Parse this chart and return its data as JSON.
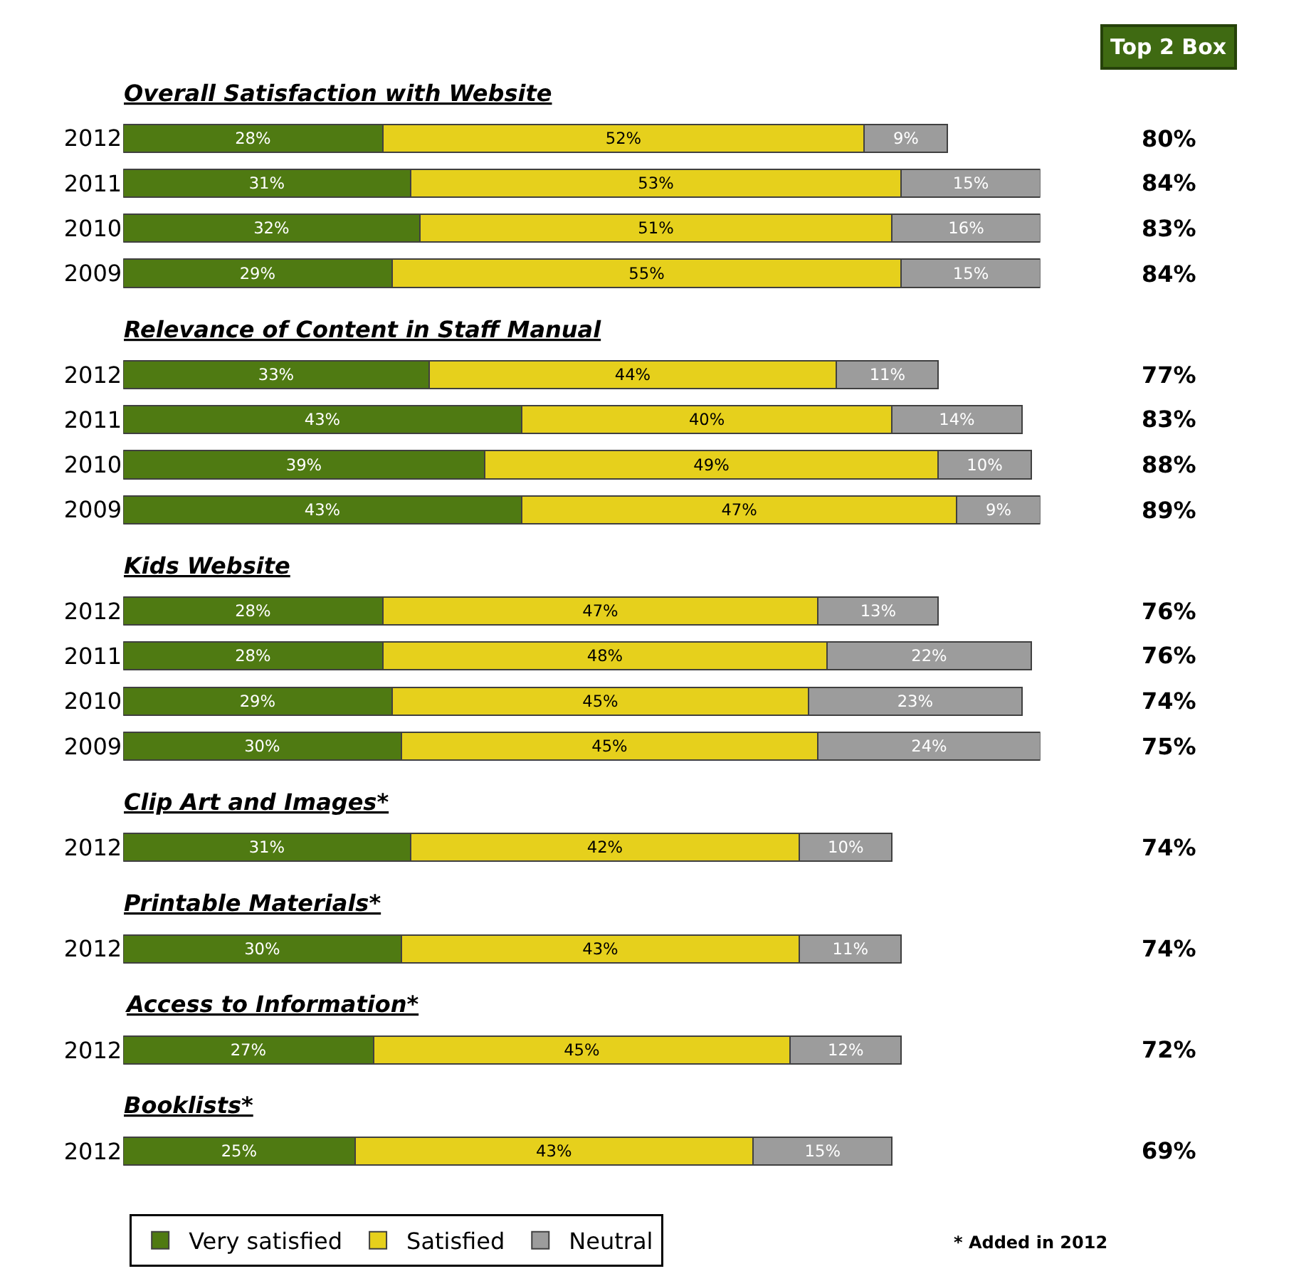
{
  "chart_data": [
    {
      "type": "bar",
      "orientation": "horizontal",
      "stacked": true,
      "tick_labels": "y",
      "title": "Overall Satisfaction with Website",
      "categories": [
        "2012",
        "2011",
        "2010",
        "2009"
      ],
      "legend": "bottom",
      "series": [
        {
          "name": "Very satisfied",
          "color": "#4f7a12",
          "values": [
            28,
            31,
            32,
            29
          ],
          "value_labels": [
            "28%",
            "31%",
            "32%",
            "29%"
          ]
        },
        {
          "name": "Satisfied",
          "color": "#e6d01c",
          "values": [
            52,
            53,
            51,
            55
          ],
          "value_labels": [
            "52%",
            "53%",
            "51%",
            "55%"
          ]
        },
        {
          "name": "Neutral",
          "color": "#9c9c9c",
          "values": [
            9,
            15,
            16,
            15
          ],
          "value_labels": [
            "9%",
            "15%",
            "16%",
            "15%"
          ]
        }
      ],
      "annotations": [
        "Top 2 Box",
        "80%",
        "84%",
        "83%",
        "84%"
      ]
    },
    {
      "type": "bar",
      "orientation": "horizontal",
      "stacked": true,
      "tick_labels": "y",
      "title": "Relevance of Content in Staff Manual",
      "categories": [
        "2012",
        "2011",
        "2010",
        "2009"
      ],
      "series": [
        {
          "color": "#4f7a12",
          "values": [
            33,
            43,
            39,
            43
          ],
          "value_labels": [
            "33%",
            "43%",
            "39%",
            "43%"
          ]
        },
        {
          "color": "#e6d01c",
          "values": [
            44,
            40,
            49,
            47
          ],
          "value_labels": [
            "44%",
            "40%",
            "49%",
            "47%"
          ]
        },
        {
          "color": "#9c9c9c",
          "values": [
            11,
            14,
            10,
            9
          ],
          "value_labels": [
            "11%",
            "14%",
            "10%",
            "9%"
          ]
        }
      ],
      "annotations": [
        "77%",
        "83%",
        "88%",
        "89%"
      ]
    },
    {
      "type": "bar",
      "orientation": "horizontal",
      "stacked": true,
      "tick_labels": "y",
      "title": "Kids Website",
      "categories": [
        "2012",
        "2011",
        "2010",
        "2009"
      ],
      "series": [
        {
          "color": "#4f7a12",
          "values": [
            28,
            28,
            29,
            30
          ],
          "value_labels": [
            "28%",
            "28%",
            "29%",
            "30%"
          ]
        },
        {
          "color": "#e6d01c",
          "values": [
            47,
            48,
            45,
            45
          ],
          "value_labels": [
            "47%",
            "48%",
            "45%",
            "45%"
          ]
        },
        {
          "color": "#9c9c9c",
          "values": [
            13,
            22,
            23,
            24
          ],
          "value_labels": [
            "13%",
            "22%",
            "23%",
            "24%"
          ]
        }
      ],
      "annotations": [
        "76%",
        "76%",
        "74%",
        "75%"
      ]
    },
    {
      "type": "bar",
      "orientation": "horizontal",
      "stacked": true,
      "tick_labels": "y",
      "title": "Clip Art and Images*",
      "categories": [
        "2012"
      ],
      "series": [
        {
          "color": "#4f7a12",
          "values": [
            31
          ],
          "value_labels": [
            "31%"
          ]
        },
        {
          "color": "#e6d01c",
          "values": [
            42
          ],
          "value_labels": [
            "42%"
          ]
        },
        {
          "color": "#9c9c9c",
          "values": [
            10
          ],
          "value_labels": [
            "10%"
          ]
        }
      ],
      "annotations": [
        "74%"
      ]
    },
    {
      "type": "bar",
      "orientation": "horizontal",
      "stacked": true,
      "tick_labels": "y",
      "title": "Printable Materials*",
      "categories": [
        "2012"
      ],
      "series": [
        {
          "color": "#4f7a12",
          "values": [
            30
          ],
          "value_labels": [
            "30%"
          ]
        },
        {
          "color": "#e6d01c",
          "values": [
            43
          ],
          "value_labels": [
            "43%"
          ]
        },
        {
          "color": "#9c9c9c",
          "values": [
            11
          ],
          "value_labels": [
            "11%"
          ]
        }
      ],
      "annotations": [
        "74%"
      ]
    },
    {
      "type": "bar",
      "orientation": "horizontal",
      "stacked": true,
      "tick_labels": "y",
      "title": "Access to Information*",
      "categories": [
        "2012"
      ],
      "series": [
        {
          "color": "#4f7a12",
          "values": [
            27
          ],
          "value_labels": [
            "27%"
          ]
        },
        {
          "color": "#e6d01c",
          "values": [
            45
          ],
          "value_labels": [
            "45%"
          ]
        },
        {
          "color": "#9c9c9c",
          "values": [
            12
          ],
          "value_labels": [
            "12%"
          ]
        }
      ],
      "annotations": [
        "72%"
      ]
    },
    {
      "type": "bar",
      "orientation": "horizontal",
      "stacked": true,
      "tick_labels": "y",
      "title": "Booklists*",
      "categories": [
        "2012"
      ],
      "series": [
        {
          "color": "#4f7a12",
          "values": [
            25
          ],
          "value_labels": [
            "25%"
          ]
        },
        {
          "color": "#e6d01c",
          "values": [
            43
          ],
          "value_labels": [
            "43%"
          ]
        },
        {
          "color": "#9c9c9c",
          "values": [
            15
          ],
          "value_labels": [
            "15%"
          ]
        }
      ],
      "annotations": [
        "69%",
        "* Added in 2012"
      ]
    }
  ]
}
